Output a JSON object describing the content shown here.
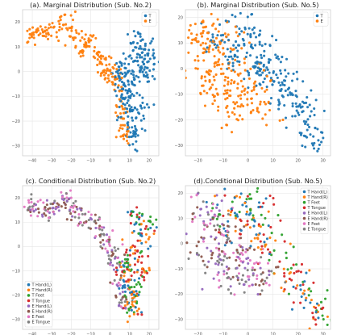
{
  "chart_data": [
    {
      "type": "scatter",
      "title": "(a). Marginal Distribution (Sub. No.2)",
      "xlabel": "",
      "ylabel": "",
      "xlim": [
        -45,
        25
      ],
      "ylim": [
        -34,
        25
      ],
      "xticks": [
        -40,
        -30,
        -20,
        -10,
        0,
        10,
        20
      ],
      "yticks": [
        -30,
        -20,
        -10,
        0,
        10,
        20
      ],
      "grid": true,
      "legend_position": "top-right",
      "series": [
        {
          "name": "T",
          "color": "#1f77b4",
          "seed": 11,
          "n": 260,
          "spread": 2.6,
          "anchors": [
            [
              14,
              12
            ],
            [
              18,
              8
            ],
            [
              20,
              4
            ],
            [
              17,
              0
            ],
            [
              13,
              -2
            ],
            [
              8,
              -4
            ],
            [
              7,
              -8
            ],
            [
              8,
              -12
            ],
            [
              10,
              -16
            ],
            [
              11,
              -20
            ],
            [
              12,
              -24
            ],
            [
              12,
              -28
            ],
            [
              16,
              -12
            ],
            [
              5,
              1
            ],
            [
              10,
              5
            ]
          ]
        },
        {
          "name": "E",
          "color": "#ff7f0e",
          "seed": 23,
          "n": 230,
          "spread": 2.0,
          "anchors": [
            [
              -40,
              16
            ],
            [
              -36,
              15
            ],
            [
              -32,
              15
            ],
            [
              -27,
              16
            ],
            [
              -23,
              20
            ],
            [
              -20,
              16
            ],
            [
              -17,
              14
            ],
            [
              -12,
              12
            ],
            [
              -8,
              9
            ],
            [
              -5,
              5
            ],
            [
              -2,
              2
            ],
            [
              2,
              -3
            ],
            [
              3,
              -8
            ],
            [
              5,
              -14
            ],
            [
              6,
              -20
            ],
            [
              7,
              -26
            ],
            [
              -15,
              9
            ],
            [
              -2,
              -1
            ]
          ]
        }
      ]
    },
    {
      "type": "scatter",
      "title": "(b). Marginal Distribution (Sub. No.5)",
      "xlabel": "",
      "ylabel": "",
      "xlim": [
        -25,
        33
      ],
      "ylim": [
        -34,
        23
      ],
      "xticks": [
        -20,
        -10,
        0,
        10,
        20,
        30
      ],
      "yticks": [
        -30,
        -20,
        -10,
        0,
        10,
        20
      ],
      "grid": true,
      "legend_position": "top-right",
      "series": [
        {
          "name": "T",
          "color": "#1f77b4",
          "seed": 37,
          "n": 260,
          "spread": 3.6,
          "anchors": [
            [
              -12,
              14
            ],
            [
              -6,
              16
            ],
            [
              0,
              15
            ],
            [
              5,
              12
            ],
            [
              -4,
              9
            ],
            [
              2,
              6
            ],
            [
              8,
              4
            ],
            [
              -8,
              5
            ],
            [
              4,
              0
            ],
            [
              10,
              -2
            ],
            [
              12,
              -6
            ],
            [
              16,
              -10
            ],
            [
              18,
              -14
            ],
            [
              22,
              -18
            ],
            [
              24,
              -22
            ],
            [
              26,
              -26
            ],
            [
              28,
              -28
            ],
            [
              14,
              -3
            ],
            [
              -2,
              2
            ]
          ]
        },
        {
          "name": "E",
          "color": "#ff7f0e",
          "seed": 41,
          "n": 250,
          "spread": 4.2,
          "anchors": [
            [
              -20,
              6
            ],
            [
              -18,
              0
            ],
            [
              -16,
              -6
            ],
            [
              -12,
              -10
            ],
            [
              -8,
              -14
            ],
            [
              -4,
              -16
            ],
            [
              -20,
              12
            ],
            [
              -14,
              10
            ],
            [
              -10,
              4
            ],
            [
              -6,
              -2
            ],
            [
              -2,
              -8
            ],
            [
              2,
              -12
            ],
            [
              6,
              -14
            ],
            [
              -2,
              -4
            ],
            [
              -16,
              16
            ],
            [
              -8,
              10
            ]
          ]
        }
      ]
    },
    {
      "type": "scatter",
      "title": "(c). Conditional Distribution (Sub. No.2)",
      "xlabel": "",
      "ylabel": "",
      "xlim": [
        -45,
        25
      ],
      "ylim": [
        -34,
        25
      ],
      "xticks": [
        -40,
        -30,
        -20,
        -10,
        0,
        10,
        20
      ],
      "yticks": [
        -30,
        -20,
        -10,
        0,
        10,
        20
      ],
      "grid": true,
      "legend_position": "bottom-left",
      "series": [
        {
          "name": "T Hand(L)",
          "color": "#1f77b4",
          "seed": 101,
          "n": 52,
          "spread": 2.4,
          "anchors": [
            [
              14,
              12
            ],
            [
              18,
              6
            ],
            [
              17,
              0
            ],
            [
              10,
              -4
            ],
            [
              8,
              -10
            ],
            [
              10,
              -16
            ],
            [
              11,
              -22
            ],
            [
              12,
              -28
            ],
            [
              15,
              -12
            ]
          ]
        },
        {
          "name": "T Hand(R)",
          "color": "#ff7f0e",
          "seed": 102,
          "n": 52,
          "spread": 2.4,
          "anchors": [
            [
              16,
              10
            ],
            [
              20,
              2
            ],
            [
              12,
              -2
            ],
            [
              7,
              -8
            ],
            [
              9,
              -14
            ],
            [
              11,
              -20
            ],
            [
              12,
              -26
            ],
            [
              17,
              -10
            ]
          ]
        },
        {
          "name": "T Feet",
          "color": "#2ca02c",
          "seed": 103,
          "n": 52,
          "spread": 2.4,
          "anchors": [
            [
              13,
              14
            ],
            [
              19,
              8
            ],
            [
              15,
              -2
            ],
            [
              8,
              -6
            ],
            [
              9,
              -12
            ],
            [
              10,
              -18
            ],
            [
              12,
              -24
            ],
            [
              16,
              -14
            ]
          ]
        },
        {
          "name": "T Tongue",
          "color": "#d62728",
          "seed": 104,
          "n": 52,
          "spread": 2.4,
          "anchors": [
            [
              15,
              12
            ],
            [
              18,
              4
            ],
            [
              11,
              -3
            ],
            [
              7,
              -10
            ],
            [
              9,
              -16
            ],
            [
              11,
              -22
            ],
            [
              13,
              -28
            ],
            [
              16,
              -8
            ]
          ]
        },
        {
          "name": "E Hand(L)",
          "color": "#9467bd",
          "seed": 105,
          "n": 56,
          "spread": 2.0,
          "anchors": [
            [
              -40,
              16
            ],
            [
              -34,
              15
            ],
            [
              -28,
              16
            ],
            [
              -22,
              20
            ],
            [
              -17,
              14
            ],
            [
              -10,
              11
            ],
            [
              -5,
              5
            ],
            [
              0,
              0
            ],
            [
              3,
              -8
            ],
            [
              6,
              -18
            ],
            [
              7,
              -26
            ]
          ]
        },
        {
          "name": "E Hand(R)",
          "color": "#8c564b",
          "seed": 106,
          "n": 56,
          "spread": 2.0,
          "anchors": [
            [
              -38,
              15
            ],
            [
              -32,
              15
            ],
            [
              -25,
              18
            ],
            [
              -20,
              16
            ],
            [
              -14,
              12
            ],
            [
              -8,
              9
            ],
            [
              -3,
              3
            ],
            [
              2,
              -3
            ],
            [
              4,
              -12
            ],
            [
              6,
              -20
            ]
          ]
        },
        {
          "name": "E Feet",
          "color": "#e377c2",
          "seed": 107,
          "n": 56,
          "spread": 2.0,
          "anchors": [
            [
              -42,
              16
            ],
            [
              -36,
              16
            ],
            [
              -30,
              15
            ],
            [
              -23,
              22
            ],
            [
              -18,
              15
            ],
            [
              -12,
              12
            ],
            [
              -6,
              7
            ],
            [
              -1,
              1
            ],
            [
              3,
              -6
            ],
            [
              5,
              -16
            ],
            [
              7,
              -24
            ]
          ]
        },
        {
          "name": "E Tongue",
          "color": "#7f7f7f",
          "seed": 108,
          "n": 56,
          "spread": 2.0,
          "anchors": [
            [
              -39,
              17
            ],
            [
              -33,
              16
            ],
            [
              -27,
              17
            ],
            [
              -21,
              18
            ],
            [
              -16,
              13
            ],
            [
              -9,
              10
            ],
            [
              -4,
              4
            ],
            [
              1,
              -1
            ],
            [
              2,
              -4
            ],
            [
              4,
              -10
            ],
            [
              6,
              -22
            ]
          ]
        }
      ]
    },
    {
      "type": "scatter",
      "title": "(d).Conditional Distribution (Sub. No.5)",
      "xlabel": "",
      "ylabel": "",
      "xlim": [
        -25,
        33
      ],
      "ylim": [
        -34,
        23
      ],
      "xticks": [
        -20,
        -10,
        0,
        10,
        20,
        30
      ],
      "yticks": [
        -30,
        -20,
        -10,
        0,
        10,
        20
      ],
      "grid": true,
      "legend_position": "top-right",
      "series": [
        {
          "name": "T Hand(L)",
          "color": "#1f77b4",
          "seed": 201,
          "n": 52,
          "spread": 3.6,
          "anchors": [
            [
              -10,
              14
            ],
            [
              -2,
              15
            ],
            [
              4,
              12
            ],
            [
              0,
              6
            ],
            [
              8,
              2
            ],
            [
              12,
              -6
            ],
            [
              18,
              -14
            ],
            [
              24,
              -22
            ],
            [
              28,
              -28
            ],
            [
              -6,
              6
            ]
          ]
        },
        {
          "name": "T Hand(R)",
          "color": "#ff7f0e",
          "seed": 202,
          "n": 52,
          "spread": 3.6,
          "anchors": [
            [
              -6,
              16
            ],
            [
              2,
              13
            ],
            [
              -4,
              8
            ],
            [
              6,
              4
            ],
            [
              10,
              -2
            ],
            [
              16,
              -10
            ],
            [
              22,
              -18
            ],
            [
              26,
              -26
            ],
            [
              4,
              0
            ]
          ]
        },
        {
          "name": "T Feet",
          "color": "#2ca02c",
          "seed": 203,
          "n": 52,
          "spread": 3.6,
          "anchors": [
            [
              -12,
              12
            ],
            [
              0,
              16
            ],
            [
              5,
              10
            ],
            [
              2,
              2
            ],
            [
              10,
              -4
            ],
            [
              14,
              -8
            ],
            [
              20,
              -16
            ],
            [
              25,
              -24
            ],
            [
              28,
              -30
            ]
          ]
        },
        {
          "name": "T Tongue",
          "color": "#d62728",
          "seed": 204,
          "n": 52,
          "spread": 3.6,
          "anchors": [
            [
              -8,
              15
            ],
            [
              3,
              14
            ],
            [
              -2,
              8
            ],
            [
              8,
              4
            ],
            [
              12,
              -4
            ],
            [
              18,
              -12
            ],
            [
              22,
              -20
            ],
            [
              27,
              -26
            ],
            [
              6,
              -2
            ]
          ]
        },
        {
          "name": "E Hand(L)",
          "color": "#9467bd",
          "seed": 205,
          "n": 56,
          "spread": 4.0,
          "anchors": [
            [
              -20,
              6
            ],
            [
              -16,
              -2
            ],
            [
              -12,
              -10
            ],
            [
              -6,
              -14
            ],
            [
              0,
              -12
            ],
            [
              -18,
              12
            ],
            [
              -10,
              4
            ],
            [
              -4,
              -6
            ],
            [
              4,
              -14
            ],
            [
              -14,
              16
            ]
          ]
        },
        {
          "name": "E Hand(R)",
          "color": "#8c564b",
          "seed": 206,
          "n": 56,
          "spread": 4.0,
          "anchors": [
            [
              -18,
              10
            ],
            [
              -14,
              2
            ],
            [
              -10,
              -6
            ],
            [
              -4,
              -12
            ],
            [
              2,
              -10
            ],
            [
              -20,
              0
            ],
            [
              -8,
              2
            ],
            [
              -2,
              -2
            ],
            [
              6,
              -14
            ]
          ]
        },
        {
          "name": "E Feet",
          "color": "#e377c2",
          "seed": 207,
          "n": 56,
          "spread": 4.0,
          "anchors": [
            [
              -20,
              14
            ],
            [
              -16,
              6
            ],
            [
              -12,
              -4
            ],
            [
              -8,
              -12
            ],
            [
              -2,
              -16
            ],
            [
              -14,
              10
            ],
            [
              -6,
              0
            ],
            [
              0,
              -8
            ],
            [
              4,
              -12
            ]
          ]
        },
        {
          "name": "E Tongue",
          "color": "#7f7f7f",
          "seed": 208,
          "n": 56,
          "spread": 4.0,
          "anchors": [
            [
              -16,
              12
            ],
            [
              -18,
              -4
            ],
            [
              -10,
              -10
            ],
            [
              -4,
              -16
            ],
            [
              2,
              -12
            ],
            [
              -12,
              6
            ],
            [
              -6,
              -4
            ],
            [
              -2,
              -8
            ],
            [
              6,
              -16
            ]
          ]
        }
      ]
    }
  ]
}
